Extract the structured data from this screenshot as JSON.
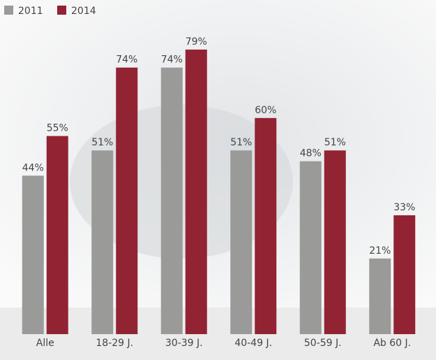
{
  "chart_data": {
    "type": "bar",
    "categories": [
      "Alle",
      "18-29 J.",
      "30-39 J.",
      "40-49 J.",
      "50-59 J.",
      "Ab 60 J."
    ],
    "series": [
      {
        "name": "2011",
        "color": "#9a9b99",
        "values": [
          44,
          51,
          74,
          51,
          48,
          21
        ],
        "value_labels": [
          "44%",
          "51%",
          "74%",
          "51%",
          "48%",
          "21%"
        ]
      },
      {
        "name": "2014",
        "color": "#922333",
        "values": [
          55,
          74,
          79,
          60,
          51,
          33
        ],
        "value_labels": [
          "55%",
          "74%",
          "79%",
          "60%",
          "51%",
          "33%"
        ]
      }
    ],
    "ylim": [
      0,
      85
    ],
    "legend": "top-left"
  }
}
